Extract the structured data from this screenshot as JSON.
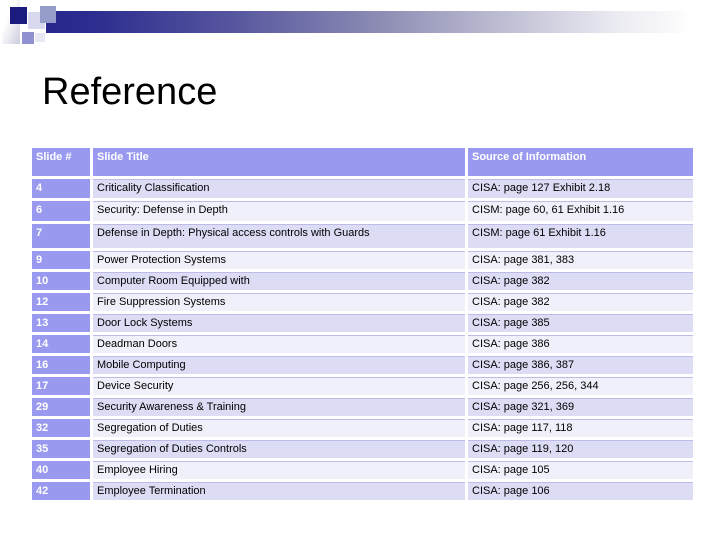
{
  "slide": {
    "title": "Reference"
  },
  "table": {
    "columns": [
      "Slide #",
      "Slide Title",
      "Source of Information"
    ],
    "rows": [
      {
        "num": "4",
        "title": "Criticality Classification",
        "source": "CISA: page 127 Exhibit 2.18"
      },
      {
        "num": "6",
        "title": "Security: Defense in Depth",
        "source": "CISM: page 60, 61 Exhibit 1.16"
      },
      {
        "num": "7",
        "title": "Defense in Depth: Physical access controls with Guards",
        "source": "CISM: page 61 Exhibit 1.16"
      },
      {
        "num": "9",
        "title": "Power Protection Systems",
        "source": "CISA: page 381, 383"
      },
      {
        "num": "10",
        "title": "Computer Room Equipped with",
        "source": "CISA: page 382"
      },
      {
        "num": "12",
        "title": "Fire Suppression Systems",
        "source": "CISA: page 382"
      },
      {
        "num": "13",
        "title": "Door Lock Systems",
        "source": "CISA: page 385"
      },
      {
        "num": "14",
        "title": "Deadman Doors",
        "source": "CISA: page 386"
      },
      {
        "num": "16",
        "title": "Mobile Computing",
        "source": "CISA: page 386, 387"
      },
      {
        "num": "17",
        "title": "Device Security",
        "source": "CISA: page 256, 256, 344"
      },
      {
        "num": "29",
        "title": "Security Awareness & Training",
        "source": "CISA: page 321, 369"
      },
      {
        "num": "32",
        "title": "Segregation of Duties",
        "source": "CISA: page 117, 118"
      },
      {
        "num": "35",
        "title": "Segregation of Duties Controls",
        "source": "CISA: page 119, 120"
      },
      {
        "num": "40",
        "title": "Employee Hiring",
        "source": "CISA: page 105"
      },
      {
        "num": "42",
        "title": "Employee Termination",
        "source": "CISA: page 106"
      }
    ]
  },
  "colors": {
    "table_header_bg": "#9999f0",
    "row_odd_bg": "#dcdcf5",
    "row_even_bg": "#f0f0fa",
    "banner_navy": "#26268c",
    "pixel_dark_navy": "#1b1b7e"
  }
}
